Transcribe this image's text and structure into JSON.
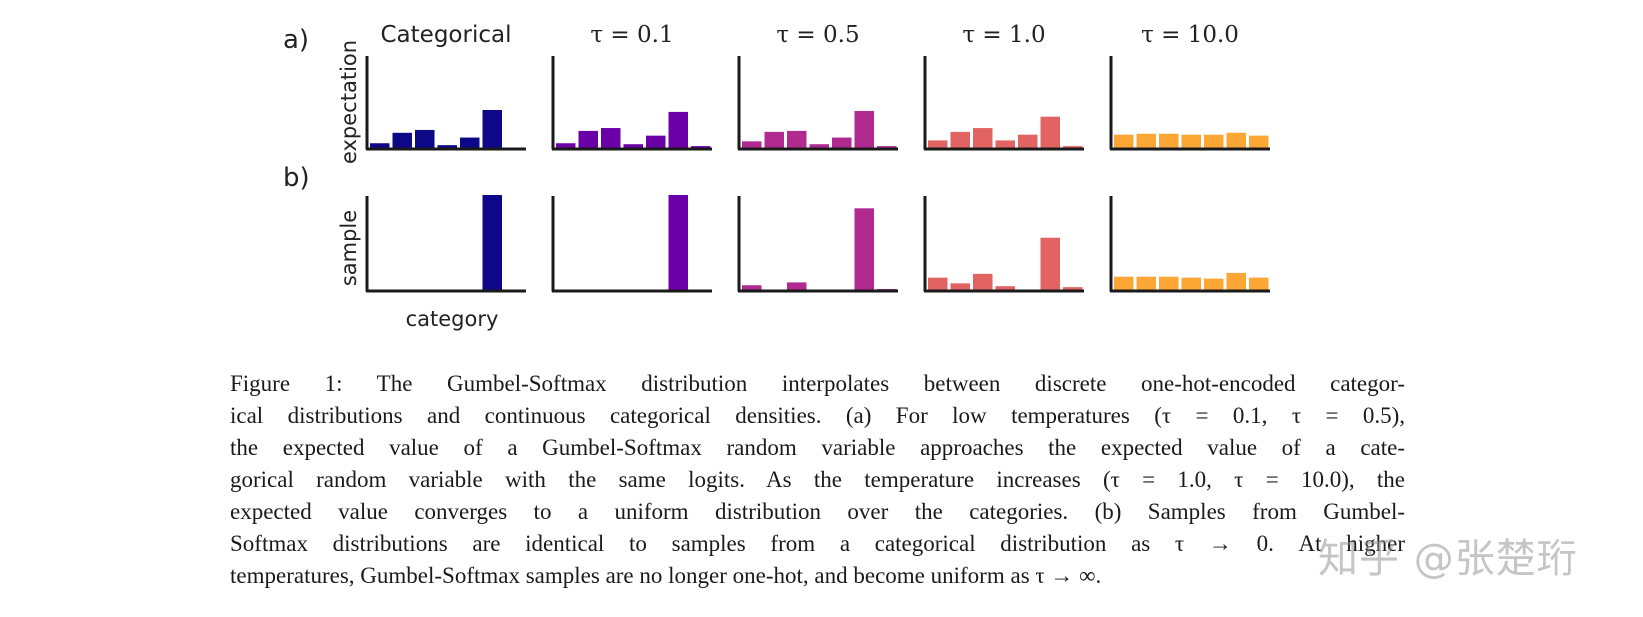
{
  "panel_labels": [
    "a)",
    "b)"
  ],
  "row_labels": [
    "expectation",
    "sample"
  ],
  "x_label": "category",
  "column_titles": [
    "Categorical",
    "τ = 0.1",
    "τ = 0.5",
    "τ = 1.0",
    "τ = 10.0"
  ],
  "colors": [
    "#0d0887",
    "#6a00a8",
    "#b12a90",
    "#e16462",
    "#fca636"
  ],
  "chart_data": [
    {
      "type": "bar",
      "title": "Categorical",
      "series": [
        {
          "row": "expectation",
          "values": [
            0.05,
            0.16,
            0.19,
            0.03,
            0.11,
            0.4,
            0.0
          ]
        },
        {
          "row": "sample",
          "values": [
            0,
            0,
            0,
            0,
            0,
            1.0,
            0
          ]
        }
      ]
    },
    {
      "type": "bar",
      "title": "τ = 0.1",
      "series": [
        {
          "row": "expectation",
          "values": [
            0.05,
            0.18,
            0.21,
            0.04,
            0.13,
            0.38,
            0.02
          ]
        },
        {
          "row": "sample",
          "values": [
            0,
            0,
            0,
            0,
            0,
            1.0,
            0
          ]
        }
      ]
    },
    {
      "type": "bar",
      "title": "τ = 0.5",
      "series": [
        {
          "row": "expectation",
          "values": [
            0.07,
            0.17,
            0.18,
            0.04,
            0.11,
            0.39,
            0.02
          ]
        },
        {
          "row": "sample",
          "values": [
            0.05,
            0,
            0.08,
            0,
            0,
            0.86,
            0.01
          ]
        }
      ]
    },
    {
      "type": "bar",
      "title": "τ = 1.0",
      "series": [
        {
          "row": "expectation",
          "values": [
            0.08,
            0.17,
            0.21,
            0.08,
            0.14,
            0.33,
            0.02
          ]
        },
        {
          "row": "sample",
          "values": [
            0.13,
            0.07,
            0.17,
            0.04,
            0,
            0.55,
            0.03
          ]
        }
      ]
    },
    {
      "type": "bar",
      "title": "τ = 10.0",
      "series": [
        {
          "row": "expectation",
          "values": [
            0.14,
            0.15,
            0.15,
            0.14,
            0.14,
            0.16,
            0.13
          ]
        },
        {
          "row": "sample",
          "values": [
            0.14,
            0.14,
            0.14,
            0.13,
            0.12,
            0.18,
            0.13
          ]
        }
      ]
    }
  ],
  "caption_lines": [
    "Figure 1: The Gumbel-Softmax distribution interpolates between discrete one-hot-encoded categor-",
    "ical distributions and continuous categorical densities. (a) For low temperatures (τ = 0.1, τ = 0.5),",
    "the expected value of a Gumbel-Softmax random variable approaches the expected value of a cate-",
    "gorical random variable with the same logits. As the temperature increases (τ = 1.0, τ = 10.0), the",
    "expected value converges to a uniform distribution over the categories. (b) Samples from Gumbel-",
    "Softmax distributions are identical to samples from a categorical distribution as τ → 0. At higher",
    "temperatures, Gumbel-Softmax samples are no longer one-hot, and become uniform as τ → ∞."
  ],
  "watermark": "知乎 @张楚珩"
}
